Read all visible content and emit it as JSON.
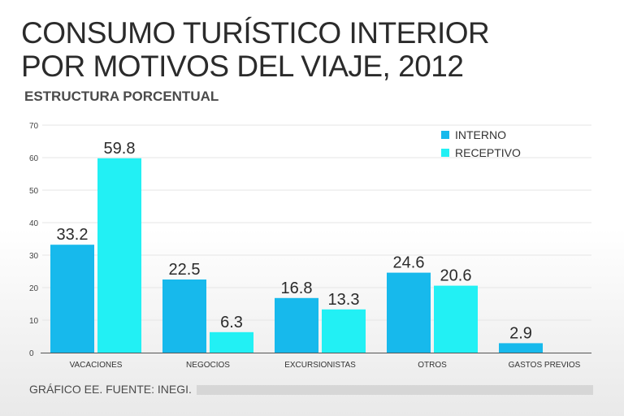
{
  "header": {
    "title_line1": "CONSUMO TURÍSTICO INTERIOR",
    "title_line2": "POR MOTIVOS DEL VIAJE, 2012",
    "subtitle": "ESTRUCTURA PORCENTUAL"
  },
  "footer": {
    "source": "GRÁFICO EE. FUENTE: INEGI."
  },
  "colors": {
    "interno": "#17b9ec",
    "receptivo": "#22f0f4",
    "grid": "#e6e6e6",
    "axis": "#555555"
  },
  "chart_data": {
    "type": "bar",
    "title": "CONSUMO TURÍSTICO INTERIOR POR MOTIVOS DEL VIAJE, 2012",
    "subtitle": "ESTRUCTURA PORCENTUAL",
    "categories": [
      "VACACIONES",
      "NEGOCIOS",
      "EXCURSIONISTAS",
      "OTROS",
      "GASTOS PREVIOS"
    ],
    "series": [
      {
        "name": "INTERNO",
        "values": [
          33.2,
          22.5,
          16.8,
          24.6,
          2.9
        ],
        "labels": [
          "33.2",
          "22.5",
          "16.8",
          "24.6",
          "2.9"
        ]
      },
      {
        "name": "RECEPTIVO",
        "values": [
          59.8,
          6.3,
          13.3,
          20.6,
          null
        ],
        "labels": [
          "59.8",
          "6.3",
          "13.3",
          "20.6",
          ""
        ]
      }
    ],
    "yticks": [
      0,
      10,
      20,
      30,
      40,
      50,
      60,
      70
    ],
    "ylim": [
      0,
      70
    ],
    "grid": true,
    "legend_position": "top-right"
  }
}
